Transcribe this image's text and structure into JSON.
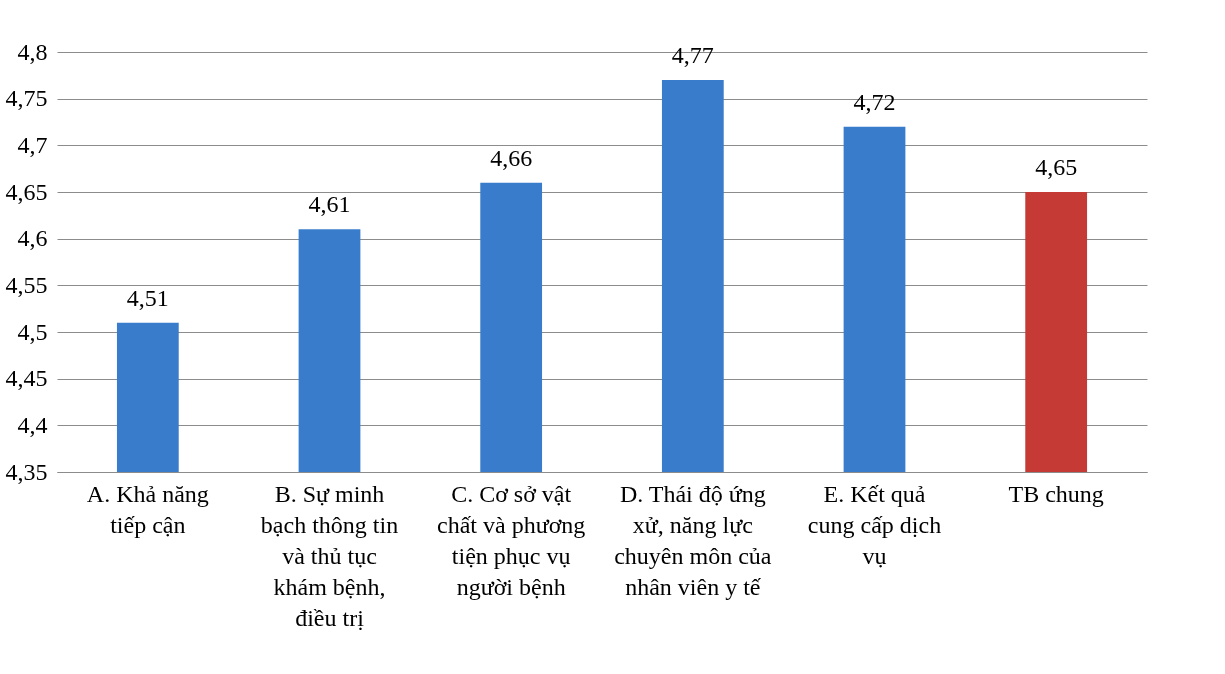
{
  "chart_data": {
    "type": "bar",
    "categories": [
      "A. Khả năng tiếp cận",
      "B. Sự minh bạch thông tin và thủ tục khám bệnh, điều trị",
      "C. Cơ sở vật chất và phương tiện phục vụ người bệnh",
      "D. Thái độ ứng xử, năng lực chuyên môn của nhân viên y tế",
      "E. Kết quả cung cấp dịch vụ",
      "TB chung"
    ],
    "values": [
      4.51,
      4.61,
      4.66,
      4.77,
      4.72,
      4.65
    ],
    "colors": [
      "#3a7ccc",
      "#3a7ccc",
      "#3a7ccc",
      "#3a7ccc",
      "#3a7ccc",
      "#c53a34"
    ],
    "value_labels": [
      "4,51",
      "4,61",
      "4,66",
      "4,77",
      "4,72",
      "4,65"
    ],
    "ylim": [
      4.35,
      4.8
    ],
    "yticks": [
      {
        "value": 4.35,
        "label": "4,35"
      },
      {
        "value": 4.4,
        "label": "4,4"
      },
      {
        "value": 4.45,
        "label": "4,45"
      },
      {
        "value": 4.5,
        "label": "4,5"
      },
      {
        "value": 4.55,
        "label": "4,55"
      },
      {
        "value": 4.6,
        "label": "4,6"
      },
      {
        "value": 4.65,
        "label": "4,65"
      },
      {
        "value": 4.7,
        "label": "4,7"
      },
      {
        "value": 4.75,
        "label": "4,75"
      },
      {
        "value": 4.8,
        "label": "4,8"
      }
    ],
    "grid": "y"
  }
}
